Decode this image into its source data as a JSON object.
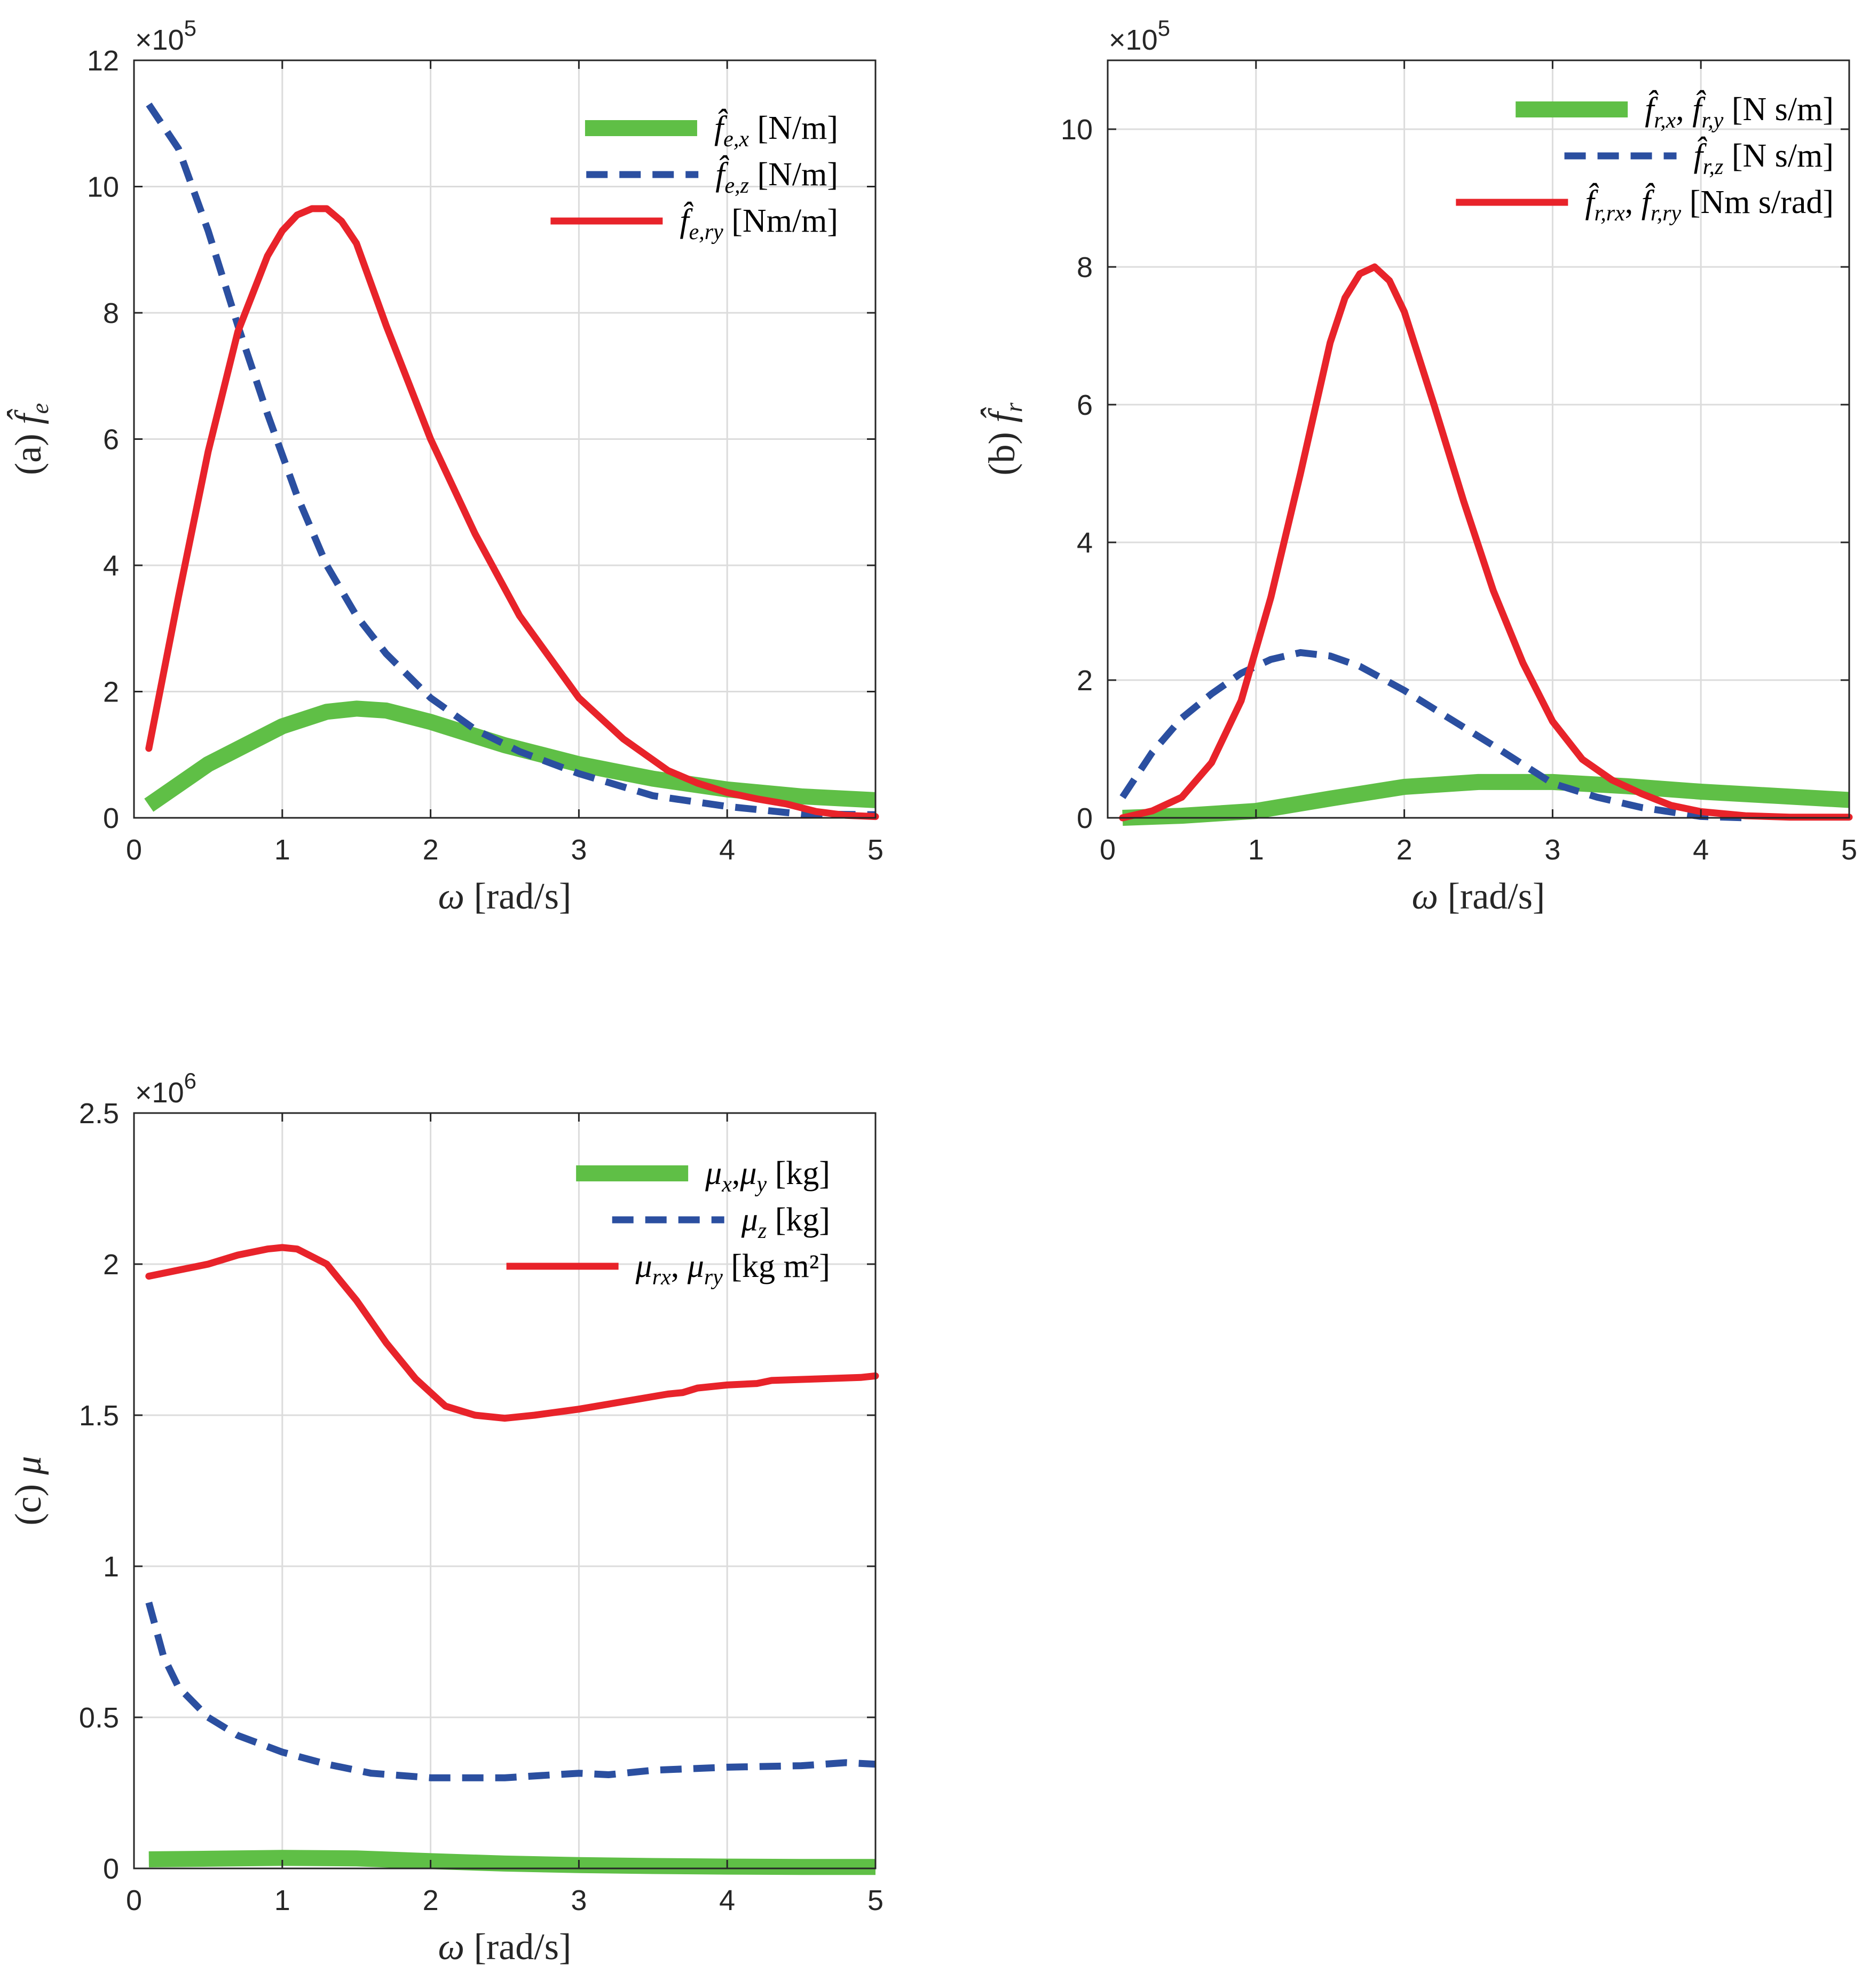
{
  "colors": {
    "green": "#5fbf46",
    "blue": "#2b4fa0",
    "red": "#e8232a",
    "grid": "#dcdcdc",
    "axis": "#262626"
  },
  "chart_data": [
    {
      "id": "a",
      "type": "line",
      "exponent": "×10",
      "exponent_power": "5",
      "xlabel_sym": "ω",
      "xlabel_unit": "[rad/s]",
      "ylabel_prefix": "(a)",
      "ylabel_sym": "f̂",
      "ylabel_sub": "e",
      "xlim": [
        0,
        5
      ],
      "ylim": [
        0,
        12
      ],
      "xticks": [
        0,
        1,
        2,
        3,
        4,
        5
      ],
      "yticks": [
        0,
        2,
        4,
        6,
        8,
        10,
        12
      ],
      "grid": true,
      "legend_position": "top-right",
      "series": [
        {
          "key": "green",
          "style": "thick",
          "sym": "f̂",
          "sub": "e,x",
          "unit": "[N/m]",
          "x": [
            0.1,
            0.5,
            1.0,
            1.3,
            1.5,
            1.7,
            2.0,
            2.5,
            3.0,
            3.5,
            4.0,
            4.5,
            5.0
          ],
          "y": [
            0.2,
            0.85,
            1.45,
            1.68,
            1.73,
            1.7,
            1.52,
            1.15,
            0.85,
            0.62,
            0.45,
            0.34,
            0.28
          ]
        },
        {
          "key": "blue",
          "style": "dashed",
          "sym": "f̂",
          "sub": "e,z",
          "unit": "[N/m]",
          "x": [
            0.1,
            0.3,
            0.5,
            0.7,
            0.9,
            1.1,
            1.3,
            1.5,
            1.7,
            2.0,
            2.3,
            2.6,
            3.0,
            3.5,
            4.0,
            4.5,
            5.0
          ],
          "y": [
            11.3,
            10.6,
            9.3,
            7.8,
            6.4,
            5.1,
            4.0,
            3.2,
            2.6,
            1.9,
            1.4,
            1.05,
            0.7,
            0.35,
            0.18,
            0.06,
            0.05
          ]
        },
        {
          "key": "red",
          "style": "solid",
          "sym": "f̂",
          "sub": "e,ry",
          "unit": "[Nm/m]",
          "x": [
            0.1,
            0.3,
            0.5,
            0.7,
            0.9,
            1.0,
            1.1,
            1.2,
            1.3,
            1.4,
            1.5,
            1.7,
            2.0,
            2.3,
            2.6,
            3.0,
            3.3,
            3.6,
            3.8,
            4.0,
            4.2,
            4.4,
            4.6,
            4.8,
            5.0
          ],
          "y": [
            1.1,
            3.5,
            5.8,
            7.7,
            8.9,
            9.3,
            9.55,
            9.65,
            9.65,
            9.45,
            9.1,
            7.8,
            6.0,
            4.5,
            3.2,
            1.9,
            1.25,
            0.75,
            0.55,
            0.4,
            0.3,
            0.22,
            0.1,
            0.04,
            0.02
          ]
        }
      ]
    },
    {
      "id": "b",
      "type": "line",
      "exponent": "×10",
      "exponent_power": "5",
      "xlabel_sym": "ω",
      "xlabel_unit": "[rad/s]",
      "ylabel_prefix": "(b)",
      "ylabel_sym": "f̂",
      "ylabel_sub": "r",
      "xlim": [
        0,
        5
      ],
      "ylim": [
        0,
        11
      ],
      "xticks": [
        0,
        1,
        2,
        3,
        4,
        5
      ],
      "yticks": [
        0,
        2,
        4,
        6,
        8,
        10
      ],
      "grid": true,
      "legend_position": "top-right",
      "series": [
        {
          "key": "green",
          "style": "thick",
          "sym": "f̂",
          "sub": "r,x",
          "sym2": "f̂",
          "sub2": "r,y",
          "unit": "[N s/m]",
          "x": [
            0.1,
            0.5,
            1.0,
            1.5,
            2.0,
            2.5,
            3.0,
            3.5,
            4.0,
            4.5,
            5.0
          ],
          "y": [
            0.0,
            0.03,
            0.1,
            0.28,
            0.45,
            0.52,
            0.52,
            0.46,
            0.38,
            0.32,
            0.26
          ]
        },
        {
          "key": "blue",
          "style": "dashed",
          "sym": "f̂",
          "sub": "r,z",
          "unit": "[N s/m]",
          "x": [
            0.1,
            0.3,
            0.5,
            0.7,
            0.9,
            1.1,
            1.3,
            1.5,
            1.7,
            2.0,
            2.3,
            2.6,
            3.0,
            3.3,
            3.6,
            4.0,
            4.3
          ],
          "y": [
            0.3,
            0.95,
            1.45,
            1.8,
            2.1,
            2.3,
            2.4,
            2.35,
            2.2,
            1.85,
            1.45,
            1.05,
            0.5,
            0.3,
            0.15,
            0.02,
            0.0
          ]
        },
        {
          "key": "red",
          "style": "solid",
          "sym": "f̂",
          "sub": "r,rx",
          "sym2": "f̂",
          "sub2": "r,ry",
          "unit": "[Nm s/rad]",
          "x": [
            0.1,
            0.3,
            0.5,
            0.7,
            0.9,
            1.1,
            1.3,
            1.5,
            1.6,
            1.7,
            1.8,
            1.9,
            2.0,
            2.2,
            2.4,
            2.6,
            2.8,
            3.0,
            3.2,
            3.4,
            3.6,
            3.8,
            4.0,
            4.3,
            4.6,
            5.0
          ],
          "y": [
            0.0,
            0.1,
            0.3,
            0.8,
            1.7,
            3.2,
            5.0,
            6.9,
            7.55,
            7.9,
            8.0,
            7.8,
            7.35,
            6.0,
            4.6,
            3.3,
            2.25,
            1.4,
            0.85,
            0.55,
            0.35,
            0.18,
            0.09,
            0.03,
            0.01,
            0.01
          ]
        }
      ]
    },
    {
      "id": "c",
      "type": "line",
      "exponent": "×10",
      "exponent_power": "6",
      "xlabel_sym": "ω",
      "xlabel_unit": "[rad/s]",
      "ylabel_prefix": "(c)",
      "ylabel_sym": "μ",
      "ylabel_sub": "",
      "xlim": [
        0,
        5
      ],
      "ylim": [
        0,
        2.5
      ],
      "xticks": [
        0,
        1,
        2,
        3,
        4,
        5
      ],
      "yticks": [
        0,
        0.5,
        1,
        1.5,
        2,
        2.5
      ],
      "grid": true,
      "legend_position": "top-right",
      "series": [
        {
          "key": "green",
          "style": "thick",
          "sym": "μ",
          "sub": "x",
          "sym2": "μ",
          "sub2": "y",
          "sep": ",",
          "unit": "[kg]",
          "x": [
            0.1,
            0.5,
            1.0,
            1.5,
            2.0,
            2.5,
            3.0,
            3.5,
            4.0,
            4.5,
            5.0
          ],
          "y": [
            0.03,
            0.032,
            0.035,
            0.033,
            0.024,
            0.016,
            0.011,
            0.008,
            0.006,
            0.005,
            0.005
          ]
        },
        {
          "key": "blue",
          "style": "dashed",
          "sym": "μ",
          "sub": "z",
          "unit": "[kg]",
          "x": [
            0.1,
            0.2,
            0.3,
            0.5,
            0.7,
            1.0,
            1.3,
            1.6,
            2.0,
            2.5,
            3.0,
            3.2,
            3.5,
            4.0,
            4.5,
            4.8,
            5.0
          ],
          "y": [
            0.88,
            0.7,
            0.6,
            0.5,
            0.44,
            0.385,
            0.345,
            0.315,
            0.3,
            0.3,
            0.315,
            0.31,
            0.325,
            0.335,
            0.34,
            0.35,
            0.345
          ]
        },
        {
          "key": "red",
          "style": "solid",
          "sym": "μ",
          "sub": "rx",
          "sym2": "μ",
          "sub2": "ry",
          "unit": "[kg m²]",
          "x": [
            0.1,
            0.3,
            0.5,
            0.7,
            0.9,
            1.0,
            1.1,
            1.3,
            1.5,
            1.7,
            1.9,
            2.1,
            2.3,
            2.5,
            2.7,
            3.0,
            3.3,
            3.6,
            3.7,
            3.8,
            4.0,
            4.2,
            4.3,
            4.6,
            4.9,
            5.0
          ],
          "y": [
            1.96,
            1.98,
            2.0,
            2.03,
            2.05,
            2.055,
            2.05,
            2.0,
            1.88,
            1.74,
            1.62,
            1.53,
            1.5,
            1.49,
            1.5,
            1.52,
            1.545,
            1.57,
            1.575,
            1.59,
            1.6,
            1.605,
            1.615,
            1.62,
            1.625,
            1.63
          ]
        }
      ]
    }
  ]
}
